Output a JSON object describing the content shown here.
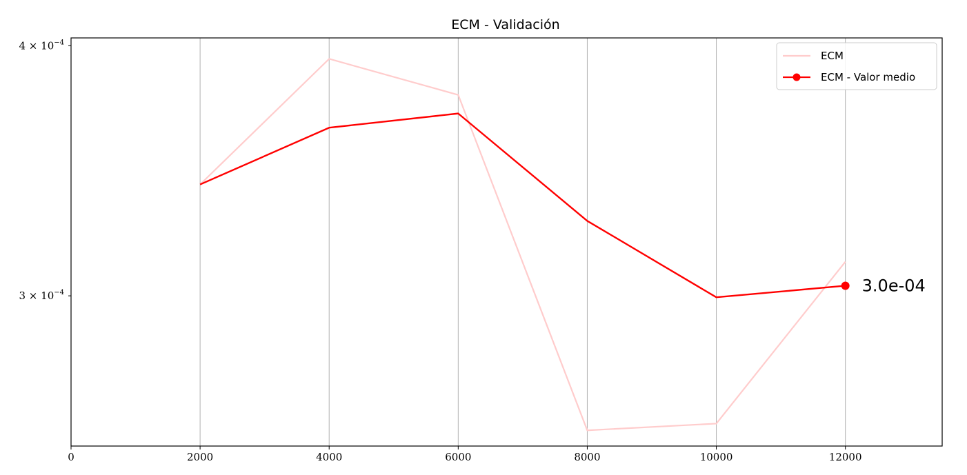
{
  "chart_data": {
    "type": "line",
    "title": "ECM - Validación",
    "xlabel": "",
    "ylabel": "",
    "xlim": [
      0,
      13500
    ],
    "ylim": [
      0.0002524,
      0.0004036
    ],
    "yscale": "log",
    "grid": "vertical-only",
    "xticks": [
      {
        "value": 0,
        "label": "0"
      },
      {
        "value": 2000,
        "label": "2000"
      },
      {
        "value": 4000,
        "label": "4000"
      },
      {
        "value": 6000,
        "label": "6000"
      },
      {
        "value": 8000,
        "label": "8000"
      },
      {
        "value": 10000,
        "label": "10000"
      },
      {
        "value": 12000,
        "label": "12000"
      }
    ],
    "yticks": [
      {
        "value": 0.0003,
        "mantissa": "3",
        "times": "×",
        "base": "10",
        "exponent": "−4"
      },
      {
        "value": 0.0004,
        "mantissa": "4",
        "times": "×",
        "base": "10",
        "exponent": "−4"
      }
    ],
    "legend_position": "upper-right",
    "series": [
      {
        "name": "ECM",
        "color": "#ffcccc",
        "marker": "none",
        "x": [
          2000,
          4000,
          6000,
          8000,
          10000,
          12000
        ],
        "y": [
          0.000341,
          0.000394,
          0.000378,
          0.000257,
          0.000259,
          0.000312
        ]
      },
      {
        "name": "ECM - Valor medio",
        "color": "#ff0000",
        "marker": "last-point",
        "x": [
          2000,
          4000,
          6000,
          8000,
          10000,
          12000
        ],
        "y": [
          0.000341,
          0.000364,
          0.00037,
          0.000327,
          0.0002995,
          0.0003035
        ]
      }
    ],
    "annotations": [
      {
        "text": "3.0e-04",
        "x": 12000,
        "y": 0.0003035
      }
    ]
  }
}
